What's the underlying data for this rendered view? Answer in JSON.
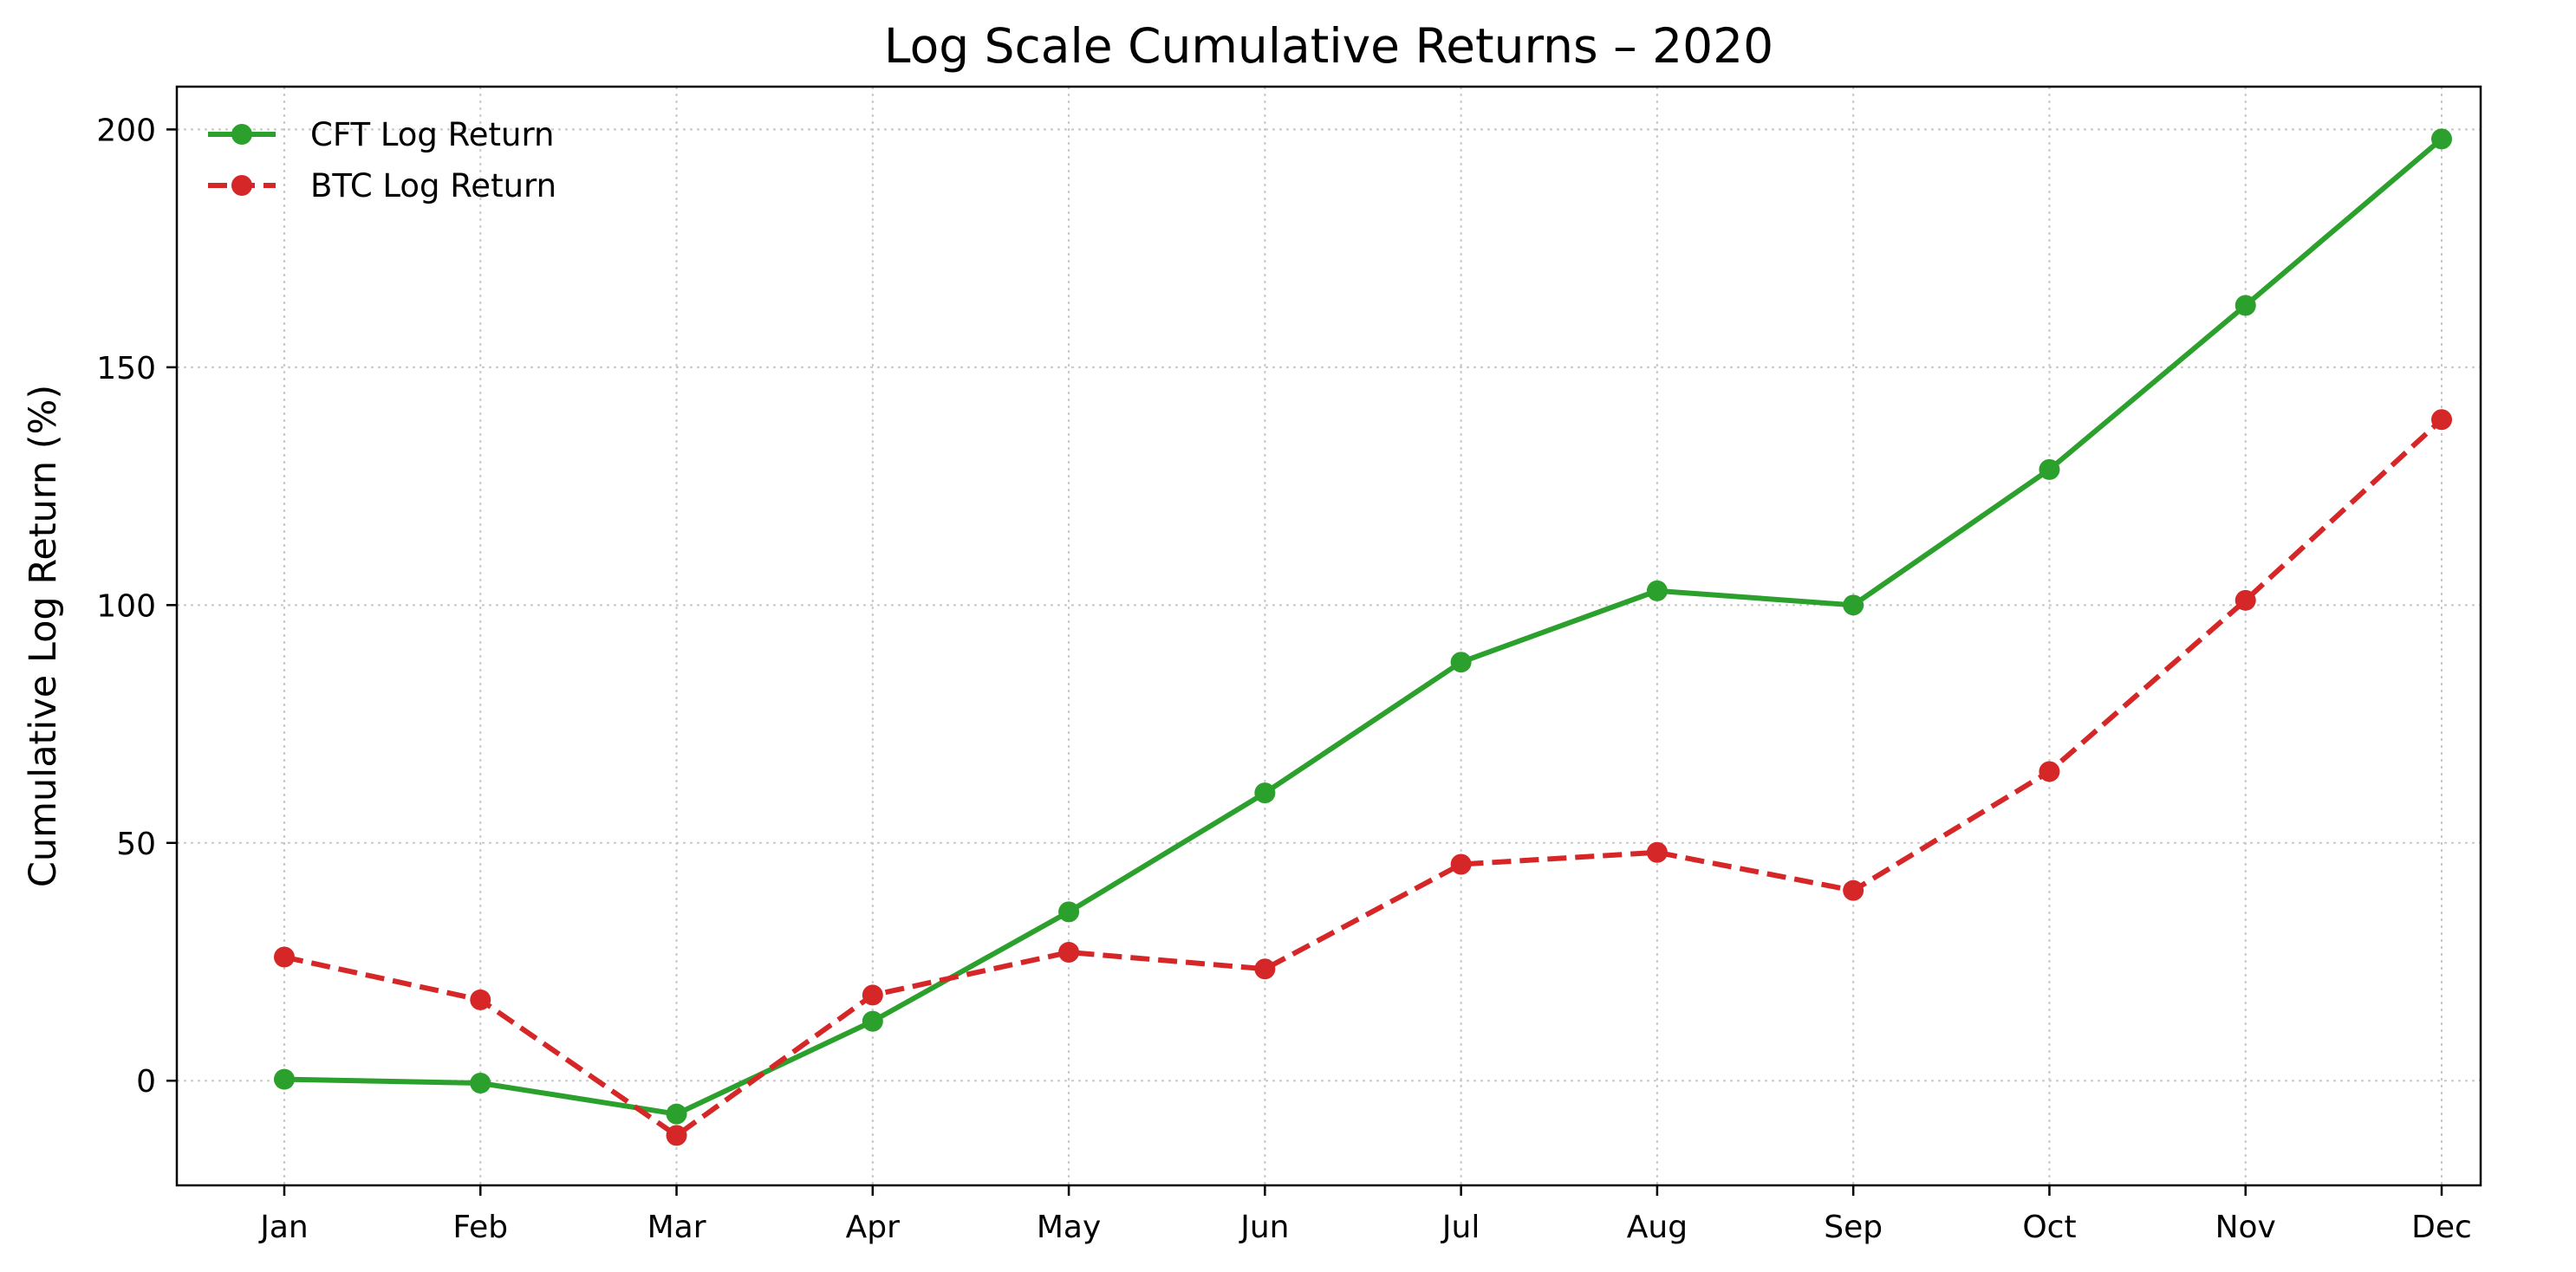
{
  "chart_data": {
    "type": "line",
    "title": "Log Scale Cumulative Returns – 2020",
    "xlabel": "",
    "ylabel": "Cumulative Log Return (%)",
    "categories": [
      "Jan",
      "Feb",
      "Mar",
      "Apr",
      "May",
      "Jun",
      "Jul",
      "Aug",
      "Sep",
      "Oct",
      "Nov",
      "Dec"
    ],
    "y_ticks": [
      0,
      50,
      100,
      150,
      200
    ],
    "ylim": [
      -22,
      209
    ],
    "grid": true,
    "legend_position": "top-left",
    "series": [
      {
        "name": "CFT Log Return",
        "color": "#2ca02c",
        "line_style": "solid",
        "marker": "circle",
        "values": [
          0.3,
          -0.5,
          -7.0,
          12.5,
          35.5,
          60.5,
          88.0,
          103.0,
          100.0,
          128.5,
          163.0,
          198.0
        ]
      },
      {
        "name": "BTC Log Return",
        "color": "#d62728",
        "line_style": "dashed",
        "marker": "circle",
        "values": [
          26.0,
          17.0,
          -11.5,
          18.0,
          27.0,
          23.5,
          45.5,
          48.0,
          40.0,
          65.0,
          101.0,
          139.0
        ]
      }
    ]
  }
}
